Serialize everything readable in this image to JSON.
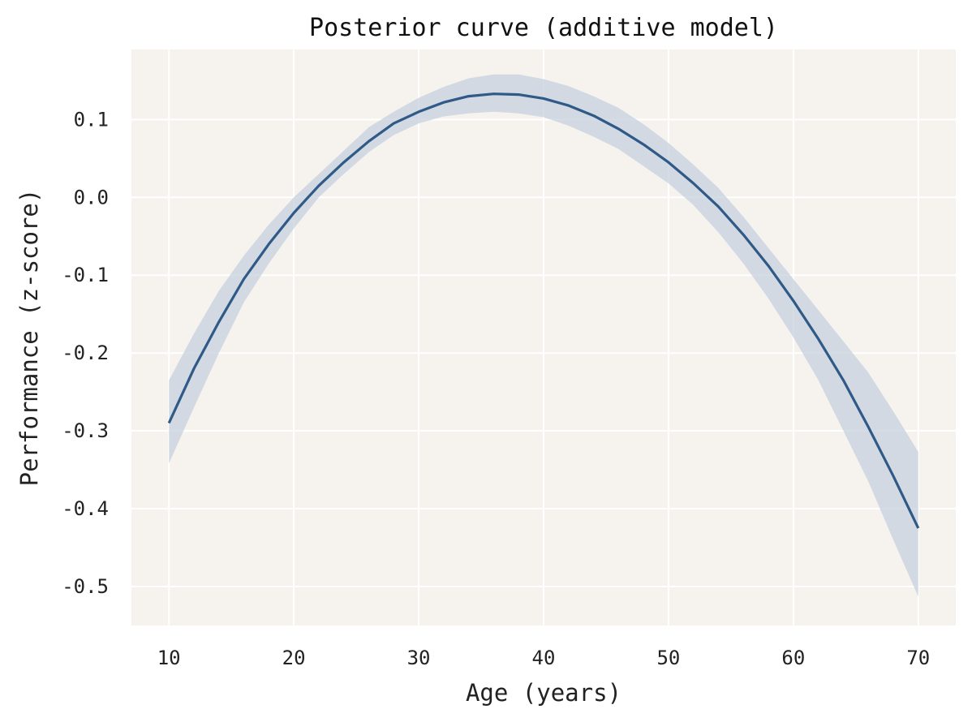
{
  "chart_data": {
    "type": "line",
    "title": "Posterior curve (additive model)",
    "xlabel": "Age (years)",
    "ylabel": "Performance (z-score)",
    "xlim": [
      7,
      73
    ],
    "ylim": [
      -0.55,
      0.19
    ],
    "xticks": [
      10,
      20,
      30,
      40,
      50,
      60,
      70
    ],
    "yticks": [
      0.1,
      0.0,
      -0.1,
      -0.2,
      -0.3,
      -0.4,
      -0.5
    ],
    "xtick_labels": [
      "10",
      "20",
      "30",
      "40",
      "50",
      "60",
      "70"
    ],
    "ytick_labels": [
      "0.1",
      "0.0",
      "-0.1",
      "-0.2",
      "-0.3",
      "-0.4",
      "-0.5"
    ],
    "grid": true,
    "colors": {
      "background": "#f6f3ee",
      "grid": "#ffffff",
      "line": "#2f5a87",
      "band": "#c5d0dd"
    },
    "series": [
      {
        "x": [
          10,
          12,
          14,
          16,
          18,
          20,
          22,
          24,
          26,
          28,
          30,
          32,
          34,
          36,
          38,
          40,
          42,
          44,
          46,
          48,
          50,
          52,
          54,
          56,
          58,
          60,
          62,
          64,
          66,
          68,
          70
        ],
        "y": [
          -0.29,
          -0.22,
          -0.16,
          -0.105,
          -0.06,
          -0.02,
          0.015,
          0.045,
          0.072,
          0.095,
          0.11,
          0.122,
          0.13,
          0.133,
          0.132,
          0.127,
          0.118,
          0.105,
          0.088,
          0.068,
          0.045,
          0.018,
          -0.012,
          -0.048,
          -0.088,
          -0.133,
          -0.182,
          -0.235,
          -0.295,
          -0.358,
          -0.425
        ],
        "lower": [
          -0.342,
          -0.27,
          -0.2,
          -0.135,
          -0.085,
          -0.04,
          0.0,
          0.03,
          0.058,
          0.08,
          0.095,
          0.104,
          0.108,
          0.11,
          0.108,
          0.103,
          0.092,
          0.078,
          0.062,
          0.04,
          0.018,
          -0.01,
          -0.045,
          -0.085,
          -0.13,
          -0.18,
          -0.235,
          -0.3,
          -0.365,
          -0.44,
          -0.513
        ],
        "upper": [
          -0.235,
          -0.175,
          -0.12,
          -0.075,
          -0.035,
          0.0,
          0.03,
          0.06,
          0.09,
          0.11,
          0.128,
          0.142,
          0.153,
          0.158,
          0.158,
          0.152,
          0.143,
          0.13,
          0.115,
          0.094,
          0.07,
          0.042,
          0.012,
          -0.025,
          -0.065,
          -0.105,
          -0.145,
          -0.185,
          -0.225,
          -0.275,
          -0.327
        ]
      }
    ]
  }
}
